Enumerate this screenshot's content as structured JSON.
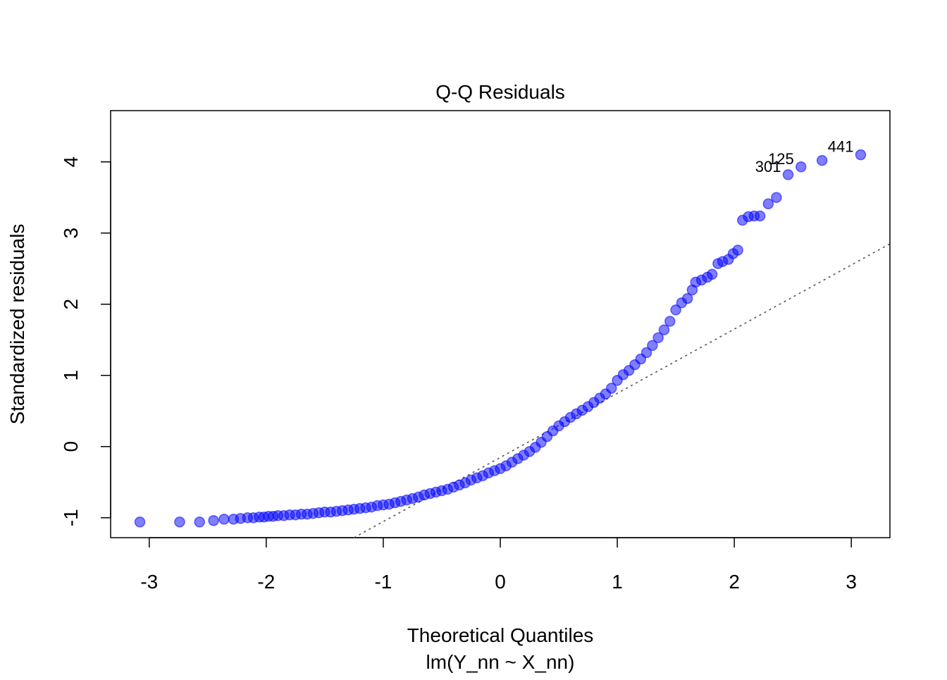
{
  "chart_data": {
    "type": "scatter",
    "title": "Q-Q Residuals",
    "xlabel": "Theoretical Quantiles",
    "subtitle": "lm(Y_nn ~ X_nn)",
    "ylabel": "Standardized residuals",
    "xlim": [
      -3.33,
      3.33
    ],
    "ylim": [
      -1.28,
      4.72
    ],
    "xticks": [
      -3,
      -2,
      -1,
      0,
      1,
      2,
      3
    ],
    "yticks": [
      -1,
      0,
      1,
      2,
      3,
      4
    ],
    "grid": false,
    "point_color": "#0000FF",
    "reference_line": {
      "slope": 0.9015,
      "intercept": -0.153,
      "style": "dotted",
      "color": "#555555"
    },
    "points": [
      [
        -3.08,
        -1.06
      ],
      [
        -2.74,
        -1.06
      ],
      [
        -2.57,
        -1.06
      ],
      [
        -2.45,
        -1.04
      ],
      [
        -2.36,
        -1.02
      ],
      [
        -2.28,
        -1.02
      ],
      [
        -2.22,
        -1.01
      ],
      [
        -2.16,
        -1.0
      ],
      [
        -2.11,
        -1.0
      ],
      [
        -2.06,
        -0.99
      ],
      [
        -2.02,
        -0.99
      ],
      [
        -1.98,
        -0.98
      ],
      [
        -1.94,
        -0.98
      ],
      [
        -1.9,
        -0.97
      ],
      [
        -1.85,
        -0.97
      ],
      [
        -1.8,
        -0.96
      ],
      [
        -1.75,
        -0.96
      ],
      [
        -1.7,
        -0.95
      ],
      [
        -1.65,
        -0.95
      ],
      [
        -1.6,
        -0.94
      ],
      [
        -1.55,
        -0.93
      ],
      [
        -1.5,
        -0.92
      ],
      [
        -1.45,
        -0.92
      ],
      [
        -1.4,
        -0.91
      ],
      [
        -1.35,
        -0.9
      ],
      [
        -1.3,
        -0.89
      ],
      [
        -1.25,
        -0.88
      ],
      [
        -1.2,
        -0.87
      ],
      [
        -1.15,
        -0.86
      ],
      [
        -1.1,
        -0.85
      ],
      [
        -1.05,
        -0.83
      ],
      [
        -1.0,
        -0.82
      ],
      [
        -0.95,
        -0.81
      ],
      [
        -0.9,
        -0.79
      ],
      [
        -0.85,
        -0.77
      ],
      [
        -0.8,
        -0.75
      ],
      [
        -0.75,
        -0.73
      ],
      [
        -0.7,
        -0.71
      ],
      [
        -0.65,
        -0.68
      ],
      [
        -0.6,
        -0.66
      ],
      [
        -0.55,
        -0.64
      ],
      [
        -0.5,
        -0.62
      ],
      [
        -0.45,
        -0.6
      ],
      [
        -0.4,
        -0.57
      ],
      [
        -0.35,
        -0.54
      ],
      [
        -0.3,
        -0.51
      ],
      [
        -0.25,
        -0.47
      ],
      [
        -0.2,
        -0.44
      ],
      [
        -0.15,
        -0.41
      ],
      [
        -0.1,
        -0.37
      ],
      [
        -0.05,
        -0.34
      ],
      [
        0,
        -0.31
      ],
      [
        0.05,
        -0.27
      ],
      [
        0.1,
        -0.22
      ],
      [
        0.15,
        -0.17
      ],
      [
        0.2,
        -0.12
      ],
      [
        0.25,
        -0.07
      ],
      [
        0.3,
        -0.01
      ],
      [
        0.35,
        0.06
      ],
      [
        0.4,
        0.14
      ],
      [
        0.45,
        0.22
      ],
      [
        0.5,
        0.29
      ],
      [
        0.55,
        0.35
      ],
      [
        0.6,
        0.41
      ],
      [
        0.65,
        0.46
      ],
      [
        0.7,
        0.51
      ],
      [
        0.75,
        0.56
      ],
      [
        0.8,
        0.62
      ],
      [
        0.85,
        0.68
      ],
      [
        0.9,
        0.74
      ],
      [
        0.95,
        0.82
      ],
      [
        1.0,
        0.93
      ],
      [
        1.05,
        1.01
      ],
      [
        1.1,
        1.07
      ],
      [
        1.15,
        1.15
      ],
      [
        1.2,
        1.23
      ],
      [
        1.25,
        1.32
      ],
      [
        1.3,
        1.42
      ],
      [
        1.35,
        1.53
      ],
      [
        1.4,
        1.64
      ],
      [
        1.45,
        1.76
      ],
      [
        1.5,
        1.92
      ],
      [
        1.55,
        2.02
      ],
      [
        1.6,
        2.08
      ],
      [
        1.64,
        2.2
      ],
      [
        1.67,
        2.31
      ],
      [
        1.72,
        2.34
      ],
      [
        1.77,
        2.38
      ],
      [
        1.81,
        2.42
      ],
      [
        1.86,
        2.57
      ],
      [
        1.9,
        2.6
      ],
      [
        1.95,
        2.63
      ],
      [
        1.99,
        2.71
      ],
      [
        2.03,
        2.76
      ],
      [
        2.07,
        3.18
      ],
      [
        2.12,
        3.23
      ],
      [
        2.17,
        3.24
      ],
      [
        2.22,
        3.24
      ],
      [
        2.29,
        3.41
      ],
      [
        2.36,
        3.5
      ],
      [
        2.46,
        3.82
      ],
      [
        2.57,
        3.93
      ],
      [
        2.75,
        4.02
      ],
      [
        3.08,
        4.1
      ]
    ],
    "annotations": [
      {
        "text": "301",
        "x": 2.46,
        "y": 3.82
      },
      {
        "text": "125",
        "x": 2.57,
        "y": 3.93
      },
      {
        "text": "441",
        "x": 3.08,
        "y": 4.1
      }
    ]
  }
}
